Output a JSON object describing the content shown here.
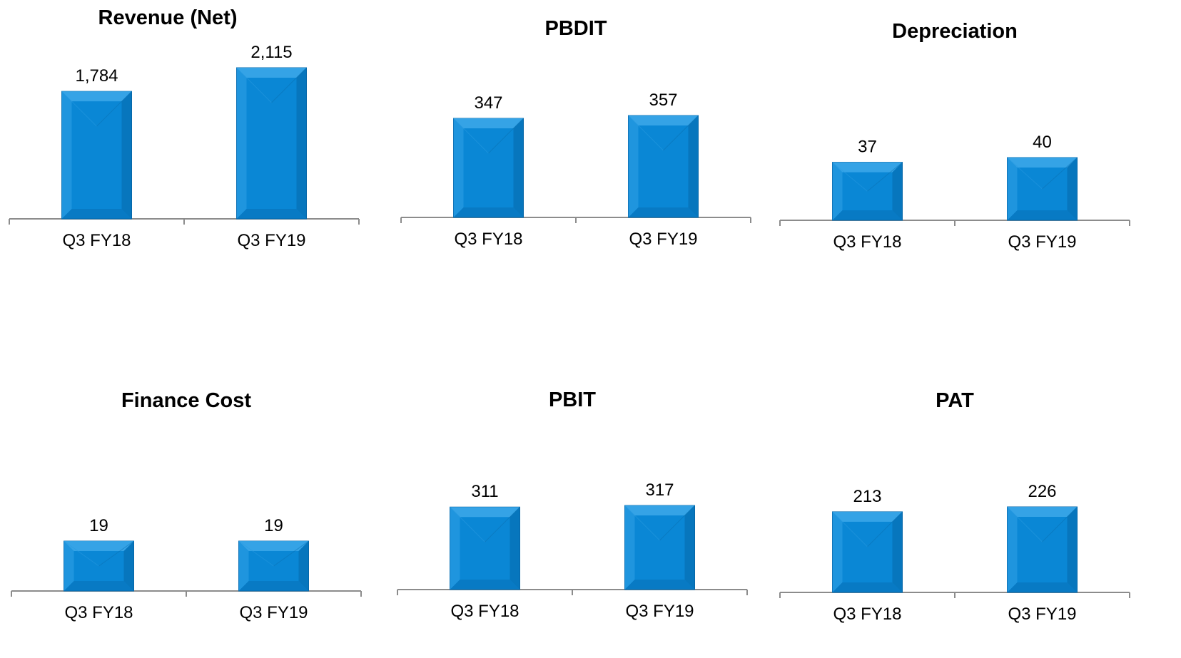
{
  "colors": {
    "bar": "#0a87d5",
    "bar_dark": "#0667a9",
    "bar_light": "#3aa6e8",
    "axis": "#8c8c8c"
  },
  "chart_data": [
    {
      "type": "bar",
      "title": "Revenue (Net)",
      "categories": [
        "Q3 FY18",
        "Q3 FY19"
      ],
      "values": [
        1784,
        2115
      ],
      "value_labels": [
        "1,784",
        "2,115"
      ]
    },
    {
      "type": "bar",
      "title": "PBDIT",
      "categories": [
        "Q3 FY18",
        "Q3 FY19"
      ],
      "values": [
        347,
        357
      ],
      "value_labels": [
        "347",
        "357"
      ]
    },
    {
      "type": "bar",
      "title": "Depreciation",
      "categories": [
        "Q3 FY18",
        "Q3 FY19"
      ],
      "values": [
        37,
        40
      ],
      "value_labels": [
        "37",
        "40"
      ]
    },
    {
      "type": "bar",
      "title": "Finance Cost",
      "categories": [
        "Q3 FY18",
        "Q3 FY19"
      ],
      "values": [
        19,
        19
      ],
      "value_labels": [
        "19",
        "19"
      ]
    },
    {
      "type": "bar",
      "title": "PBIT",
      "categories": [
        "Q3 FY18",
        "Q3 FY19"
      ],
      "values": [
        311,
        317
      ],
      "value_labels": [
        "311",
        "317"
      ]
    },
    {
      "type": "bar",
      "title": "PAT",
      "categories": [
        "Q3 FY18",
        "Q3 FY19"
      ],
      "values": [
        213,
        226
      ],
      "value_labels": [
        "213",
        "226"
      ]
    }
  ]
}
